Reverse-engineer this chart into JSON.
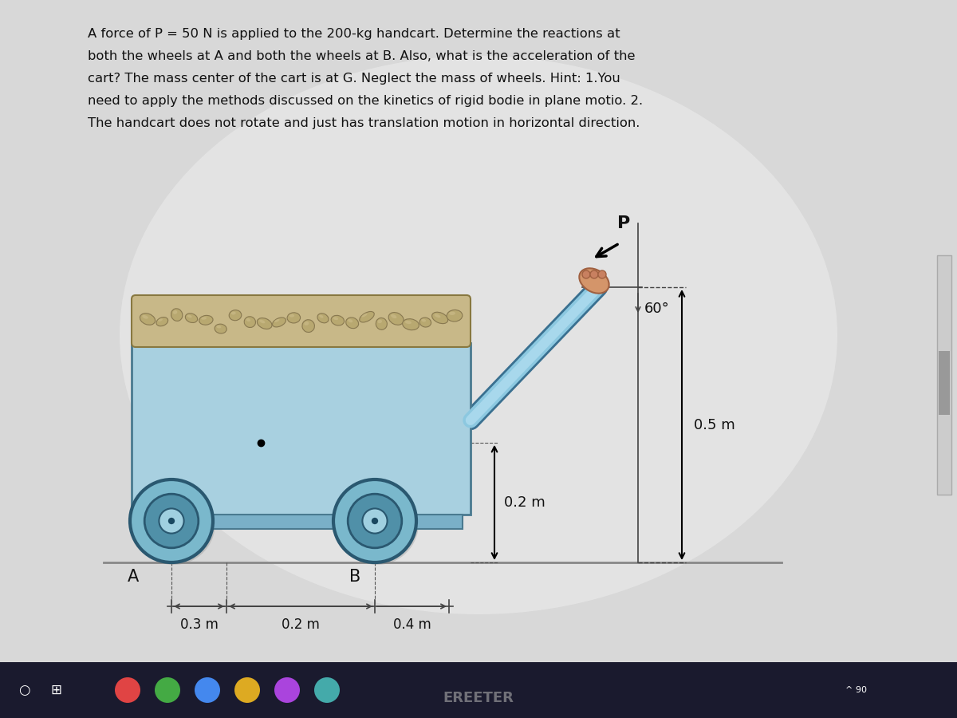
{
  "bg_color": "#d8d8d8",
  "text_color": "#111111",
  "problem_text_line1": "A force of P = 50 N is applied to the 200-kg handcart. Determine the reactions at",
  "problem_text_line2": "both the wheels at A and both the wheels at B. Also, what is the acceleration of the",
  "problem_text_line3": "cart? The mass center of the cart is at G. Neglect the mass of wheels. Hint: 1.You",
  "problem_text_line4": "need to apply the methods discussed on the kinetics of rigid bodie in plane motio. 2.",
  "problem_text_line5": "The handcart does not rotate and just has translation motion in horizontal direction.",
  "cart_fill": "#a8d0e0",
  "cart_edge": "#4a7a90",
  "cargo_fill": "#c8b888",
  "cargo_edge": "#887840",
  "wheel_fill": "#7ab8cc",
  "wheel_dark": "#2a5870",
  "handle_color": "#7ab8d0",
  "handle_dark": "#3a7090",
  "skin_color": "#d4956a",
  "ground_color": "#888888",
  "dim_color": "#333333",
  "label_color": "#111111",
  "arrow_color": "#111111"
}
